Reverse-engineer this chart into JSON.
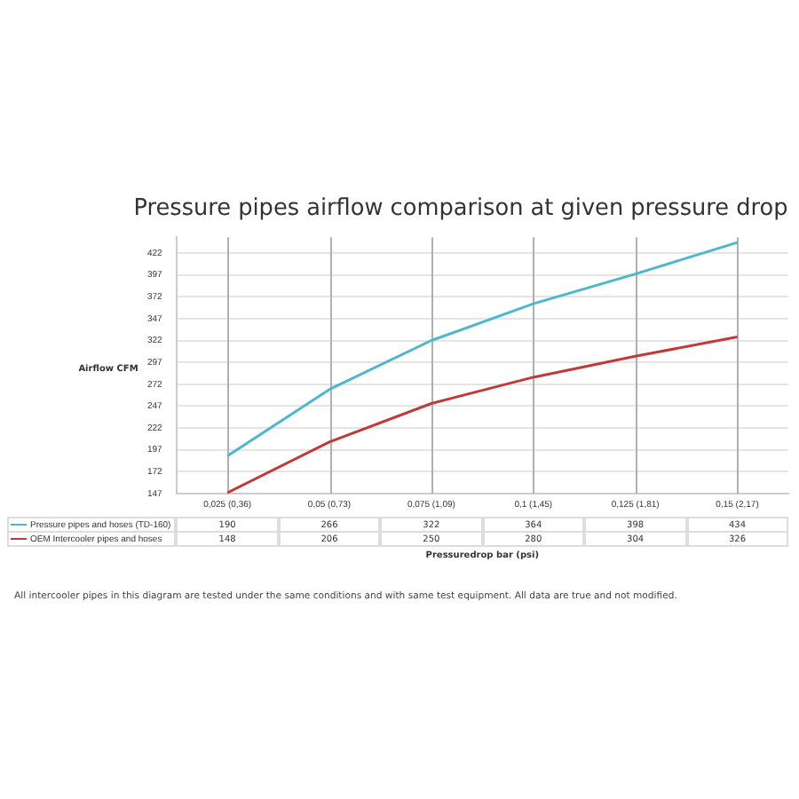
{
  "chart_data": {
    "type": "line",
    "title": "Pressure pipes airflow comparison at given pressure drop",
    "xlabel": "Pressuredrop bar (psi)",
    "ylabel": "Airflow CFM",
    "categories": [
      "0,025 (0,36)",
      "0,05 (0,73)",
      "0,075 (1,09)",
      "0,1 (1,45)",
      "0,125 (1,81)",
      "0,15 (2,17)"
    ],
    "series": [
      {
        "name": "Pressure pipes and hoses (TD-160)",
        "color": "#4bb8cc",
        "values": [
          190,
          266,
          322,
          364,
          398,
          434
        ]
      },
      {
        "name": "OEM Intercooler pipes and hoses",
        "color": "#c0393b",
        "values": [
          148,
          206,
          250,
          280,
          304,
          326
        ]
      }
    ],
    "ylim": [
      147,
      440
    ],
    "yticks": [
      147,
      172,
      197,
      222,
      247,
      272,
      297,
      322,
      347,
      372,
      397,
      422
    ],
    "grid": true,
    "legend": "bottom left",
    "marker": "none",
    "line_style": "solid",
    "data_labels": true,
    "annotations": [
      "All intercooler pipes in this diagram are tested under the same conditions and with same test equipment. All data are true and not modified."
    ]
  }
}
